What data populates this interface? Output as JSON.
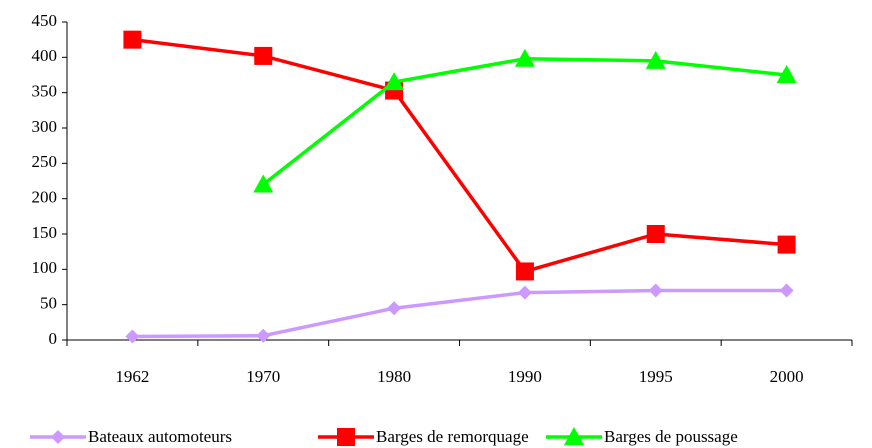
{
  "chart_data": {
    "type": "line",
    "categories": [
      "1962",
      "1970",
      "1980",
      "1990",
      "1995",
      "2000"
    ],
    "series": [
      {
        "name": "Bateaux automoteurs",
        "color": "#cc99ff",
        "marker": "diamond",
        "values": [
          5,
          6,
          45,
          67,
          70,
          70
        ]
      },
      {
        "name": "Barges de remorquage",
        "color": "#ff0000",
        "marker": "square",
        "values": [
          425,
          402,
          353,
          97,
          150,
          135
        ]
      },
      {
        "name": "Barges de poussage",
        "color": "#00ff00",
        "marker": "triangle",
        "values": [
          null,
          220,
          365,
          398,
          395,
          375
        ]
      }
    ],
    "ylim": [
      0,
      450
    ],
    "yticks": [
      0,
      50,
      100,
      150,
      200,
      250,
      300,
      350,
      400,
      450
    ],
    "grid": false,
    "legend": "bottom"
  }
}
